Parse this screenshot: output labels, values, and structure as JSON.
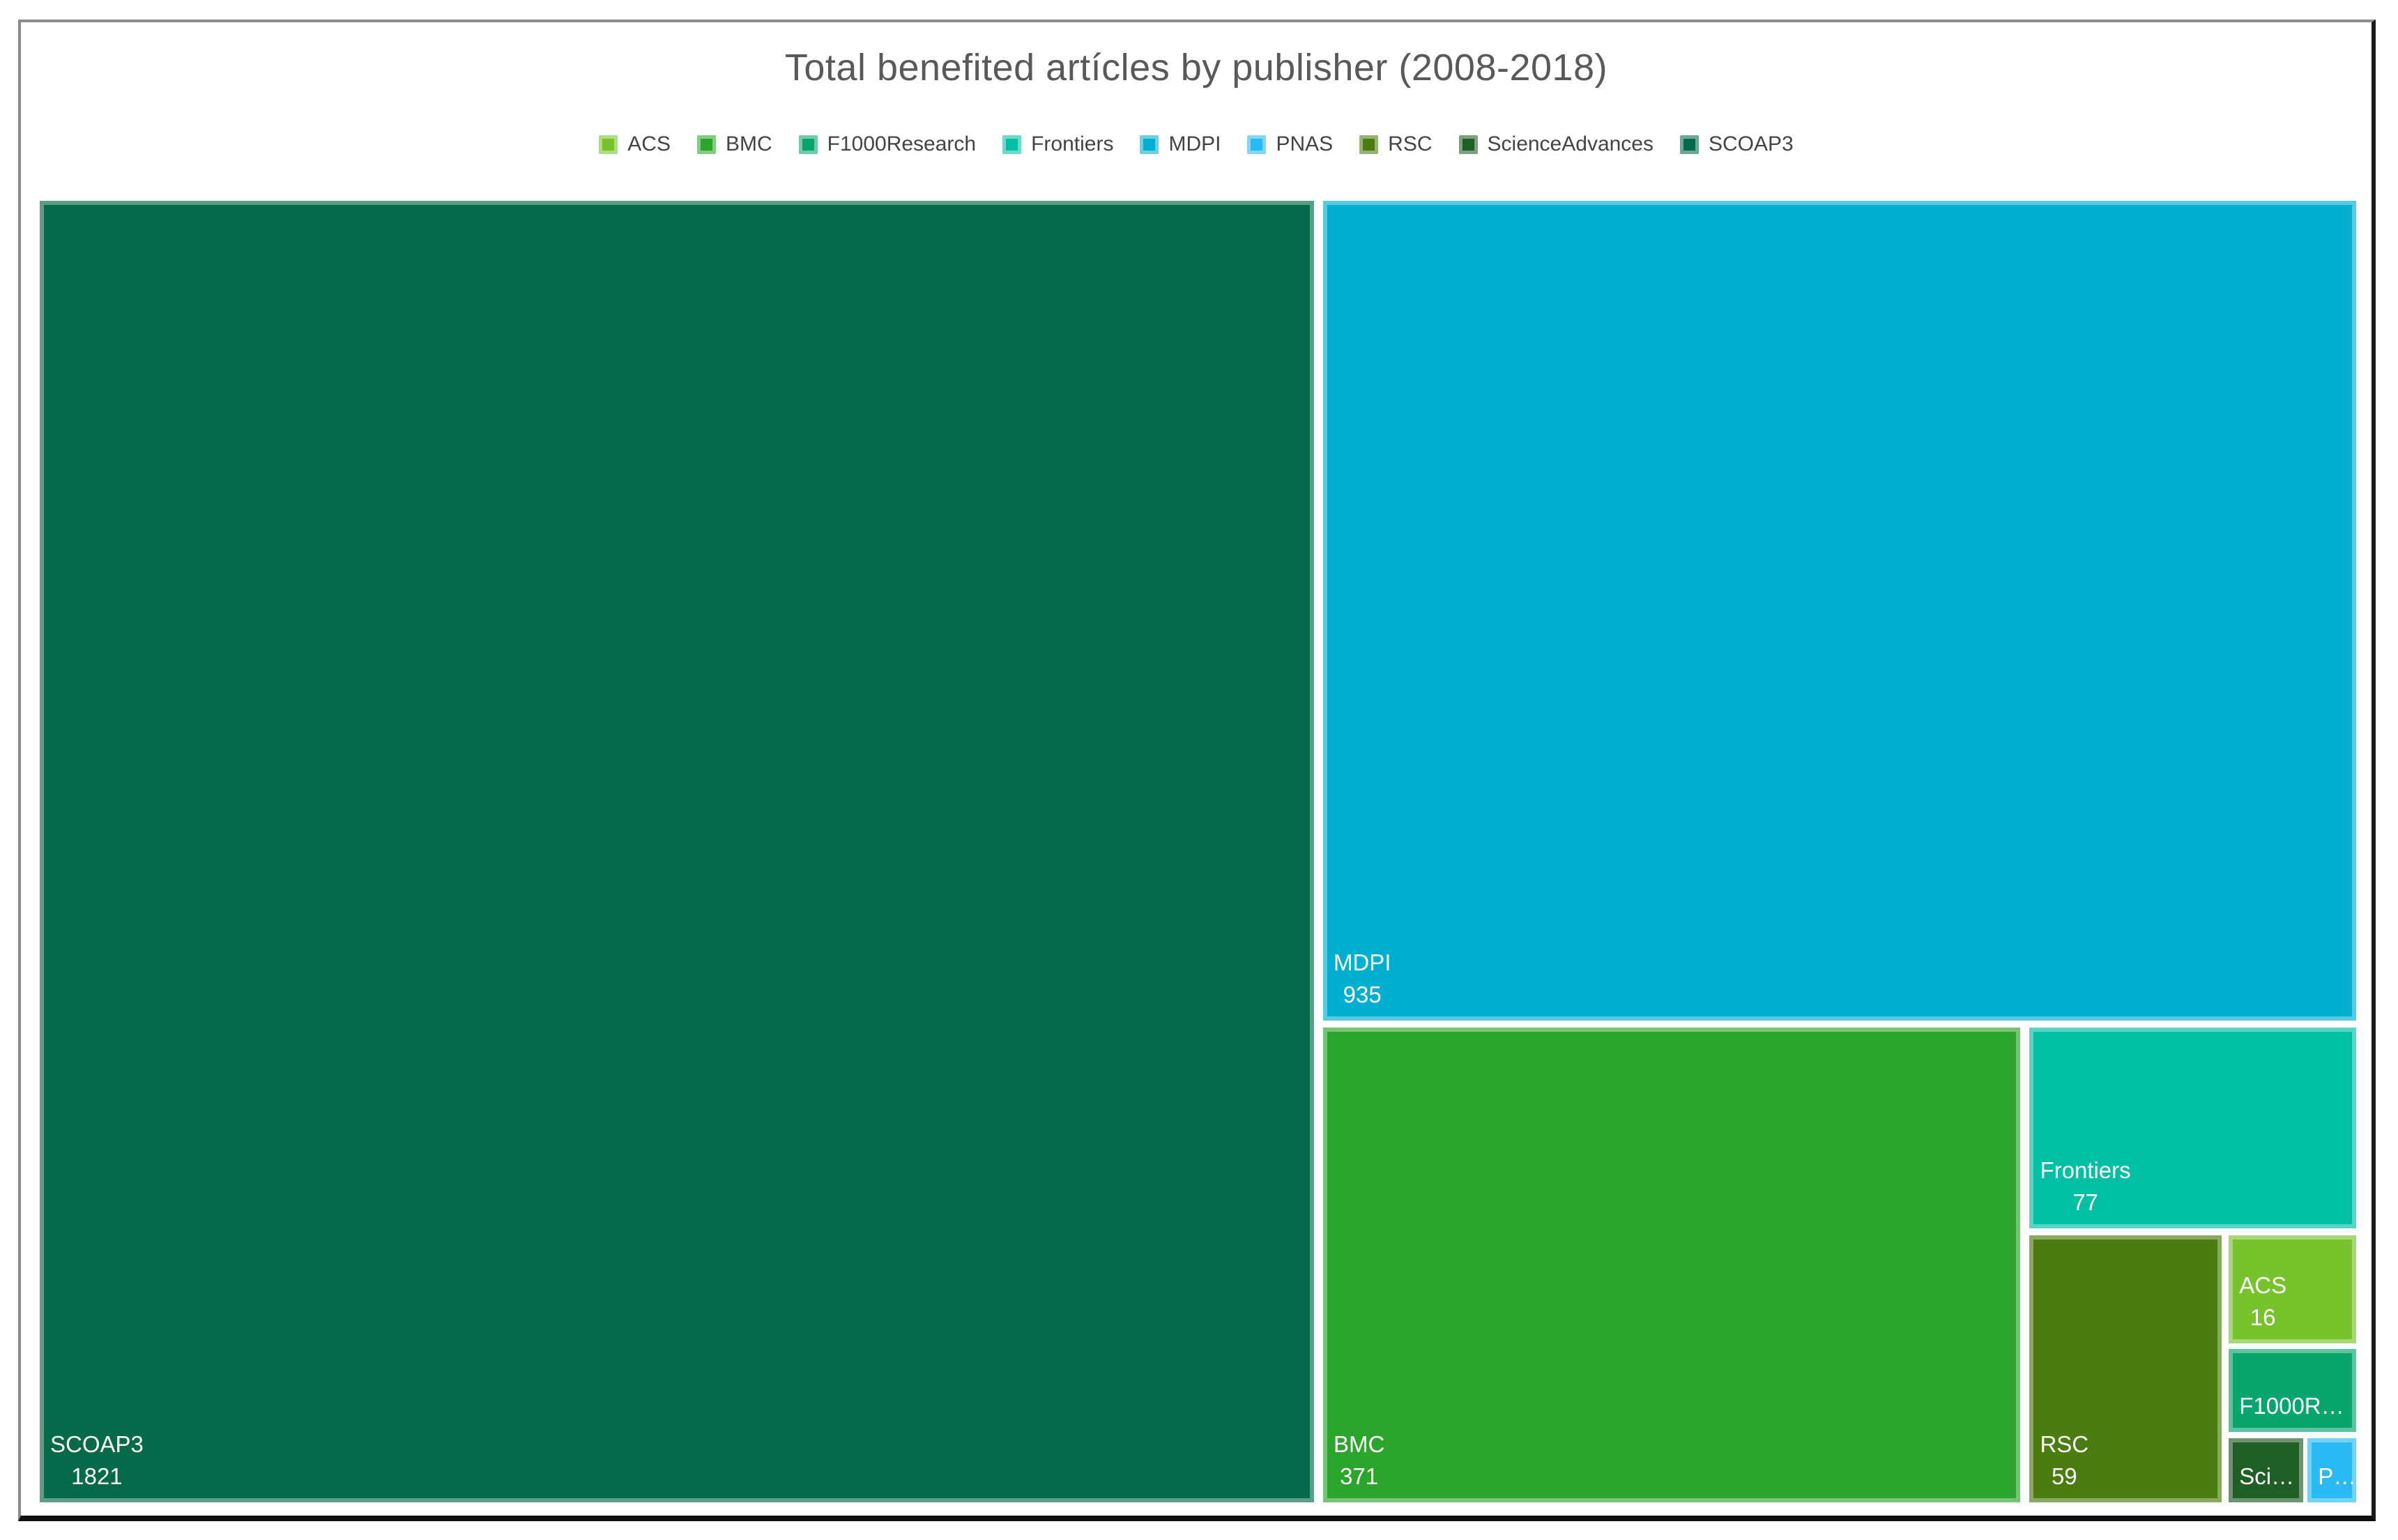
{
  "title": "Total benefited artícles by publisher (2008-2018)",
  "legend": {
    "items": [
      {
        "key": "acs",
        "label": "ACS"
      },
      {
        "key": "bmc",
        "label": "BMC"
      },
      {
        "key": "f1000research",
        "label": "F1000Research"
      },
      {
        "key": "frontiers",
        "label": "Frontiers"
      },
      {
        "key": "mdpi",
        "label": "MDPI"
      },
      {
        "key": "pnas",
        "label": "PNAS"
      },
      {
        "key": "rsc",
        "label": "RSC"
      },
      {
        "key": "scienceadvances",
        "label": "ScienceAdvances"
      },
      {
        "key": "scoap3",
        "label": "SCOAP3"
      }
    ]
  },
  "chart_data": {
    "type": "treemap",
    "title": "Total benefited artícles by publisher (2008-2018)",
    "legend_position": "top",
    "title_color": "#595959",
    "legend_text_color": "#444444",
    "label_text_color": "#ffffff",
    "series": [
      {
        "key": "scoap3",
        "name": "SCOAP3",
        "value": 1821,
        "value_label": "1821",
        "display_label": "SCOAP3",
        "color": "#046A49"
      },
      {
        "key": "mdpi",
        "name": "MDPI",
        "value": 935,
        "value_label": "935",
        "display_label": "MDPI",
        "color": "#00AFCF"
      },
      {
        "key": "bmc",
        "name": "BMC",
        "value": 371,
        "value_label": "371",
        "display_label": "BMC",
        "color": "#2CA52C"
      },
      {
        "key": "frontiers",
        "name": "Frontiers",
        "value": 77,
        "value_label": "77",
        "display_label": "Frontiers",
        "color": "#00BFA3"
      },
      {
        "key": "rsc",
        "name": "RSC",
        "value": 59,
        "value_label": "59",
        "display_label": "RSC",
        "color": "#4B7C10"
      },
      {
        "key": "acs",
        "name": "ACS",
        "value": 16,
        "value_label": "16",
        "display_label": "ACS",
        "color": "#77C32C"
      },
      {
        "key": "f1000research",
        "name": "F1000Research",
        "value": 12,
        "value_label": "",
        "display_label": "F1000R…",
        "color": "#09A56E",
        "value_estimated": true
      },
      {
        "key": "scienceadvances",
        "name": "ScienceAdvances",
        "value": 5,
        "value_label": "",
        "display_label": "Sci…",
        "color": "#1F5E24",
        "value_estimated": true
      },
      {
        "key": "pnas",
        "name": "PNAS",
        "value": 4,
        "value_label": "",
        "display_label": "P…",
        "color": "#29BAF4",
        "value_estimated": true
      }
    ]
  }
}
